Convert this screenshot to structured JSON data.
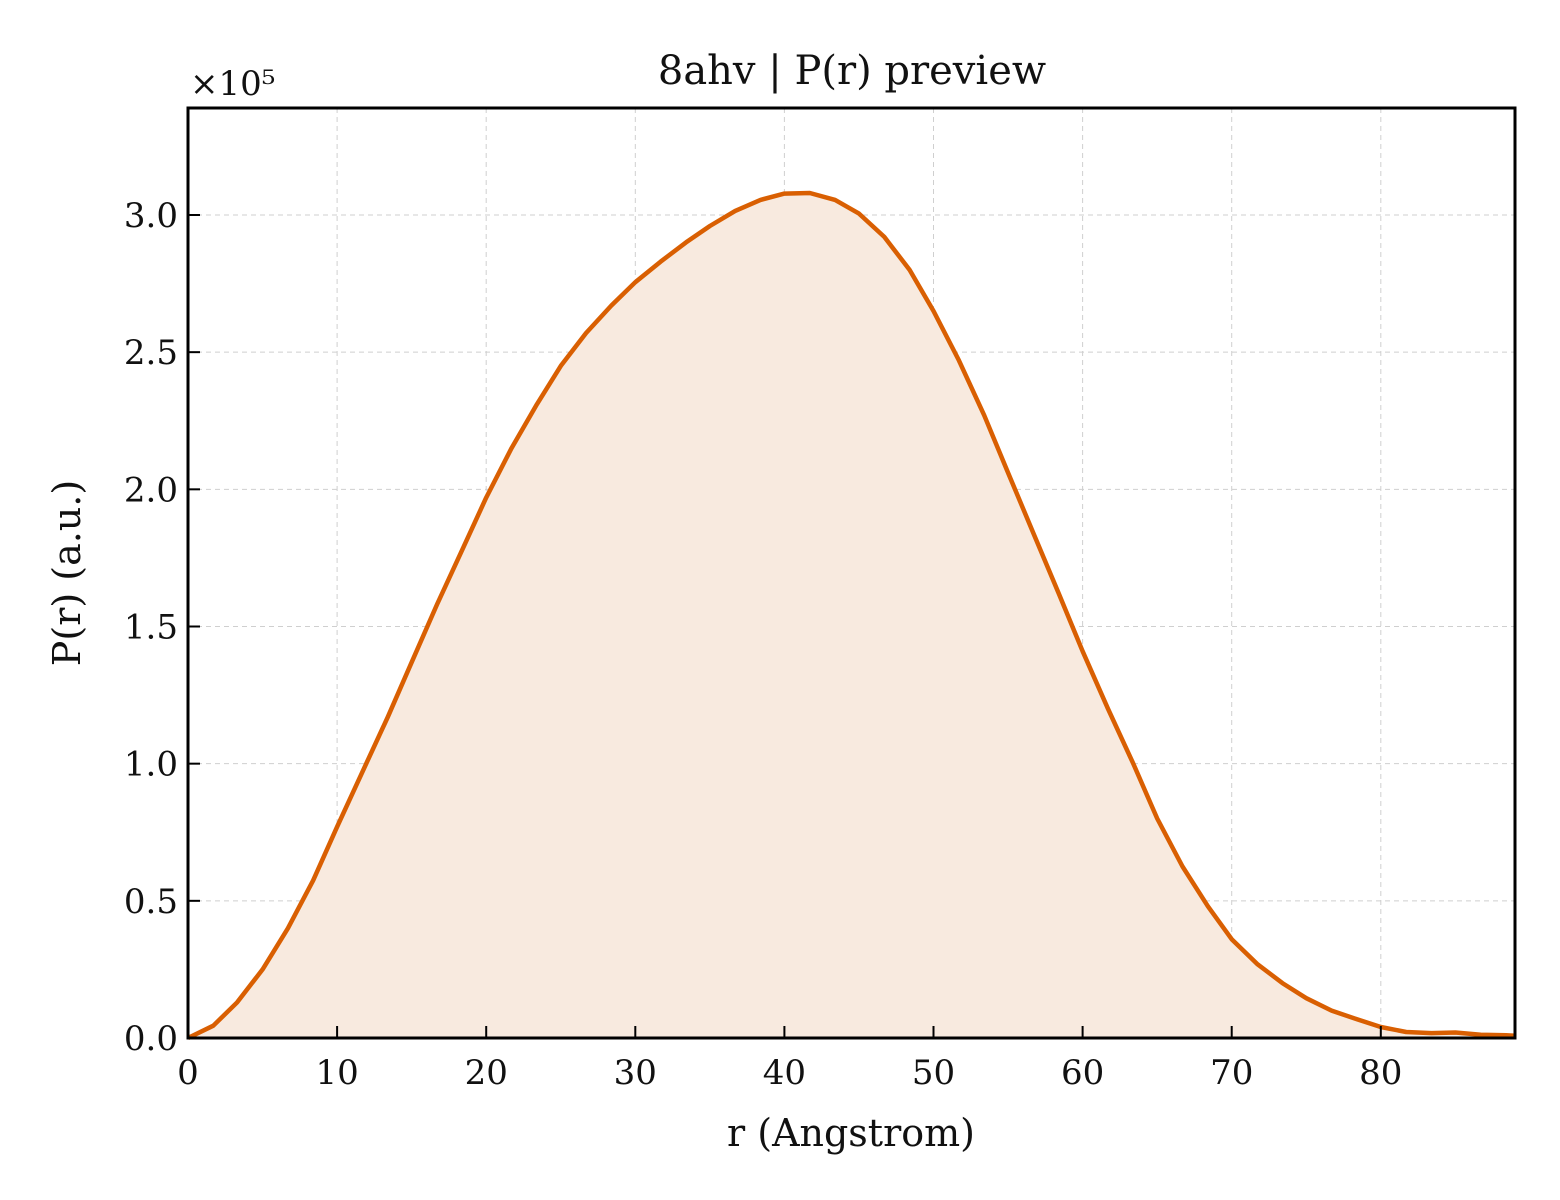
{
  "chart_data": {
    "type": "area",
    "title": "8ahv | P(r) preview",
    "xlabel": "r (Angstrom)",
    "ylabel": "P(r) (a.u.)",
    "y_offset_label": "×10⁵",
    "xlim": [
      0,
      89
    ],
    "ylim": [
      0,
      3.39
    ],
    "xticks": [
      0,
      10,
      20,
      30,
      40,
      50,
      60,
      70,
      80
    ],
    "yticks": [
      "0.0",
      "0.5",
      "1.0",
      "1.5",
      "2.0",
      "2.5",
      "3.0"
    ],
    "grid": true,
    "color": "#d95f02",
    "fill_color": "#f8eadf",
    "series": [
      {
        "x": [
          0,
          1.7,
          3.3,
          5.0,
          6.7,
          8.4,
          10.0,
          11.7,
          13.4,
          15.0,
          16.7,
          18.4,
          20.0,
          21.7,
          23.4,
          25.0,
          26.7,
          28.4,
          30.0,
          31.7,
          33.4,
          35.0,
          36.7,
          38.4,
          40.0,
          41.7,
          43.4,
          45.0,
          46.7,
          48.4,
          50.0,
          51.7,
          53.4,
          55.0,
          56.7,
          58.4,
          60.0,
          61.7,
          63.4,
          65.0,
          66.7,
          68.4,
          70.0,
          71.7,
          73.4,
          75.0,
          76.7,
          78.4,
          80.0,
          81.7,
          83.4,
          85.0,
          86.7,
          88.4,
          89.0
        ],
        "y": [
          0.0,
          0.045,
          0.13,
          0.25,
          0.4,
          0.575,
          0.77,
          0.97,
          1.17,
          1.37,
          1.58,
          1.78,
          1.97,
          2.15,
          2.31,
          2.45,
          2.57,
          2.67,
          2.755,
          2.83,
          2.9,
          2.96,
          3.015,
          3.055,
          3.078,
          3.08,
          3.055,
          3.005,
          2.92,
          2.8,
          2.65,
          2.47,
          2.27,
          2.06,
          1.84,
          1.62,
          1.41,
          1.2,
          1.0,
          0.8,
          0.625,
          0.48,
          0.36,
          0.27,
          0.2,
          0.145,
          0.1,
          0.068,
          0.04,
          0.022,
          0.018,
          0.02,
          0.012,
          0.01,
          0.008
        ]
      }
    ]
  }
}
